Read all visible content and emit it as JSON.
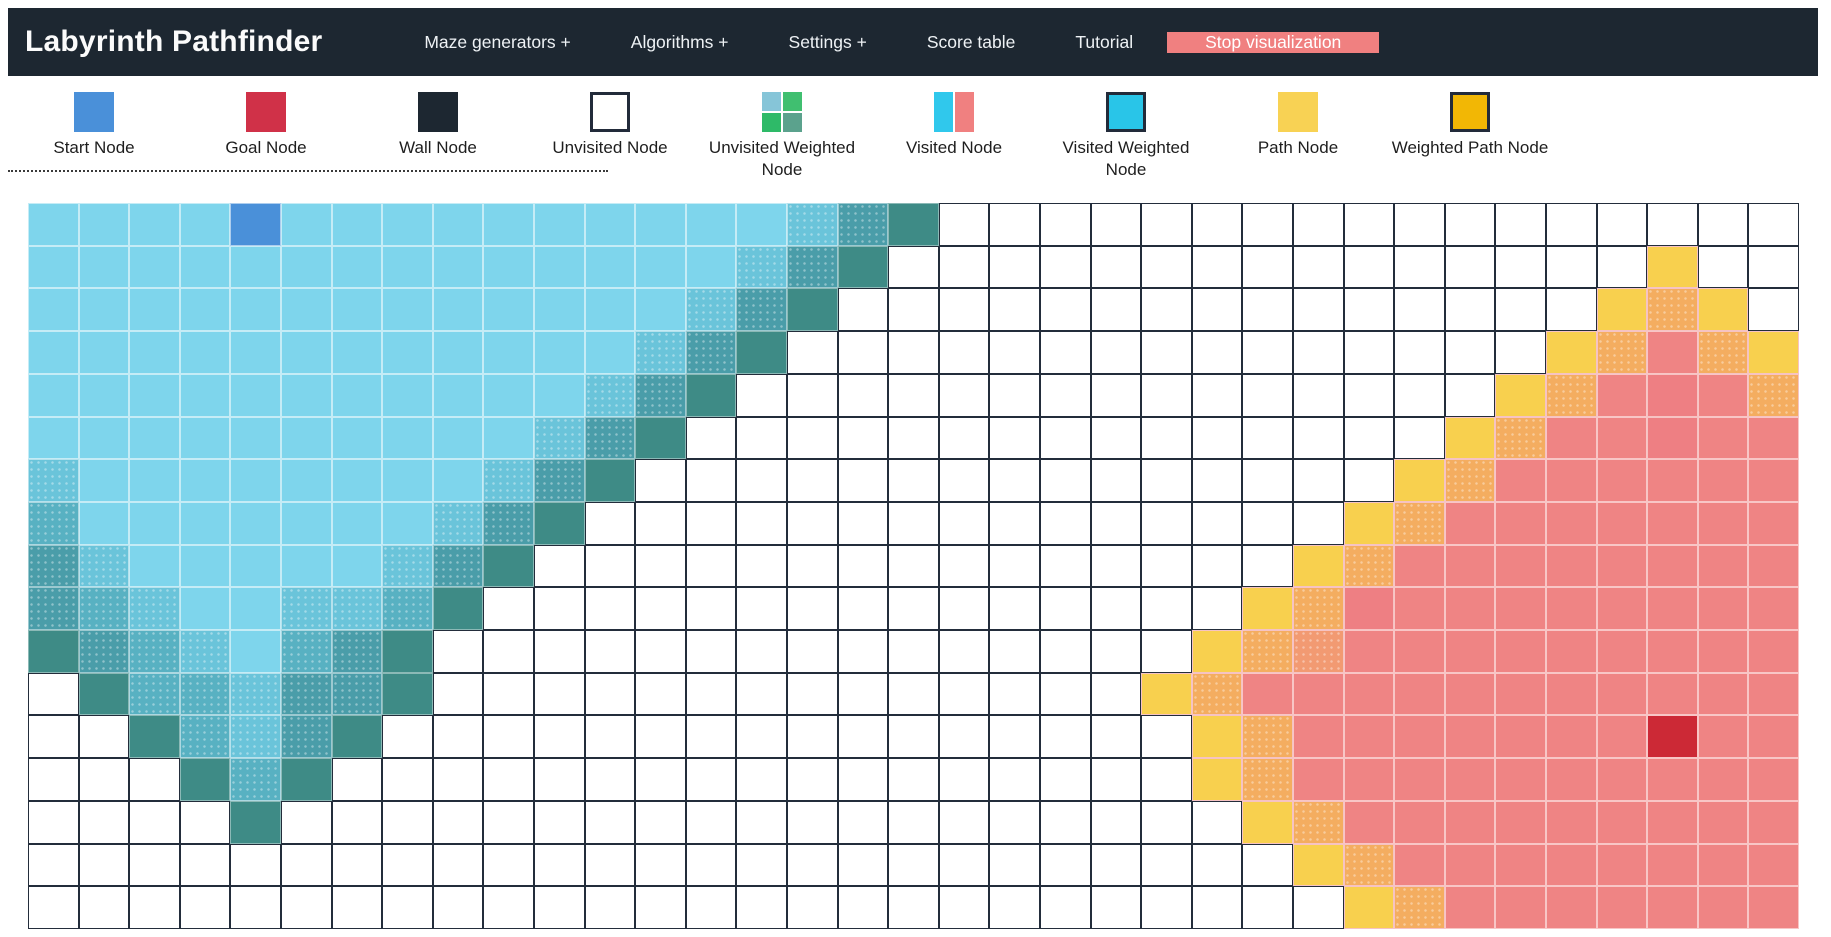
{
  "navbar": {
    "title": "Labyrinth Pathfinder",
    "bg": "#1d2731",
    "items": [
      {
        "name": "maze-generators",
        "label": "Maze generators +"
      },
      {
        "name": "algorithms",
        "label": "Algorithms +"
      },
      {
        "name": "settings",
        "label": "Settings +"
      },
      {
        "name": "score-table",
        "label": "Score table"
      },
      {
        "name": "tutorial",
        "label": "Tutorial"
      }
    ],
    "stop_button": {
      "label": "Stop visualization",
      "bg": "#f08080"
    }
  },
  "legend": {
    "items": [
      {
        "name": "start-node",
        "type": "solid",
        "colors": [
          "#4a90d9"
        ],
        "label_lines": [
          "Start Node"
        ]
      },
      {
        "name": "goal-node",
        "type": "solid",
        "colors": [
          "#d03148"
        ],
        "label_lines": [
          "Goal Node"
        ]
      },
      {
        "name": "wall-node",
        "type": "solid",
        "colors": [
          "#1d2731"
        ],
        "label_lines": [
          "Wall Node"
        ]
      },
      {
        "name": "unvisited-node",
        "type": "bordered",
        "colors": [
          "#ffffff"
        ],
        "label_lines": [
          "Unvisited Node"
        ]
      },
      {
        "name": "unvisited-weighted-node",
        "type": "quad",
        "colors": [
          "#86c5d8",
          "#40bf70",
          "#2eba68",
          "#5ba28d"
        ],
        "label_lines": [
          "Unvisited Weighted",
          "Node"
        ]
      },
      {
        "name": "visited-node",
        "type": "split",
        "colors": [
          "#30c8ec",
          "#f08080"
        ],
        "label_lines": [
          "Visited Node"
        ]
      },
      {
        "name": "visited-weighted-node",
        "type": "bordered",
        "colors": [
          "#29c5e8"
        ],
        "label_lines": [
          "Visited Weighted",
          "Node"
        ]
      },
      {
        "name": "path-node",
        "type": "solid",
        "colors": [
          "#f8d254"
        ],
        "label_lines": [
          "Path Node"
        ]
      },
      {
        "name": "weighted-path-node",
        "type": "bordered",
        "colors": [
          "#f2b705"
        ],
        "label_lines": [
          "Weighted Path Node"
        ]
      }
    ]
  },
  "grid": {
    "cols": 35,
    "rows_count": 17,
    "code_meanings": {
      ".": "unvisited",
      "S": "start-node",
      "G": "goal-node",
      "1": "visited-from-start-light",
      "2": "visited-from-start-mid",
      "3": "visited-from-start-deep",
      "4": "visited-from-start-deeper",
      "5": "visited-from-start-frontier",
      "Y": "visited-from-goal-frontier-yellow",
      "O": "visited-from-goal-orange",
      "P": "visited-from-goal-orange-salmon",
      "D": "visited-from-goal-deep-salmon",
      "R": "visited-from-goal-salmon"
    },
    "palette": {
      ".": {
        "fill": "#ffffff",
        "line": "#232d3b"
      },
      "S": {
        "fill": "#4a90d9",
        "line": "rgba(255,255,255,0.55)"
      },
      "G": {
        "fill": "#cc2936",
        "line": "#f8c6c6"
      },
      "1": {
        "fill": "#7ed5ec",
        "line": "rgba(255,255,255,0.55)"
      },
      "2": {
        "fill": "#6ac4da",
        "line": "rgba(255,255,255,0.50)",
        "dots": true
      },
      "3": {
        "fill": "#58b1c2",
        "line": "rgba(255,255,255,0.50)",
        "dots": true
      },
      "4": {
        "fill": "#4a9da9",
        "line": "rgba(255,255,255,0.45)",
        "dots": true
      },
      "5": {
        "fill": "#3e8b86",
        "line": "rgba(255,255,255,0.40)"
      },
      "Y": {
        "fill": "#f8d04e",
        "line": "#f6c3c3"
      },
      "O": {
        "fill": "#f4ad60",
        "line": "#f6c3c3",
        "dots": true
      },
      "P": {
        "fill": "#f29a72",
        "line": "#f6c3c3",
        "dots": true
      },
      "D": {
        "fill": "#ee7f83",
        "line": "#f6c3c3"
      },
      "R": {
        "fill": "#ef8484",
        "line": "#f8c6c6"
      }
    },
    "rows": [
      "1111S1111111111245.................",
      "11111111111111245...............Y..",
      "1111111111111245...............YOY.",
      "111111111111245...............YOROY",
      "11111111111245...............YORDRO",
      "1111111111245...............YORRDRR",
      "211111111245...............YORRRRRR",
      "31111111245...............YORRRRRRR",
      "4211111245...............YORRRRRRRR",
      "432112235...............YODRRRRRRRR",
      "54321345...............YOPRRRRRRRRR",
      ".5332445..............YORRRRRRRRRRR",
      "..53245................YORRRRRRRGRR",
      "...535.................YORRRRRRRRRR",
      "....5...................YORRRRRRRRR",
      ".........................YORRRRRRRR",
      "..........................YORRRRRRR"
    ]
  }
}
